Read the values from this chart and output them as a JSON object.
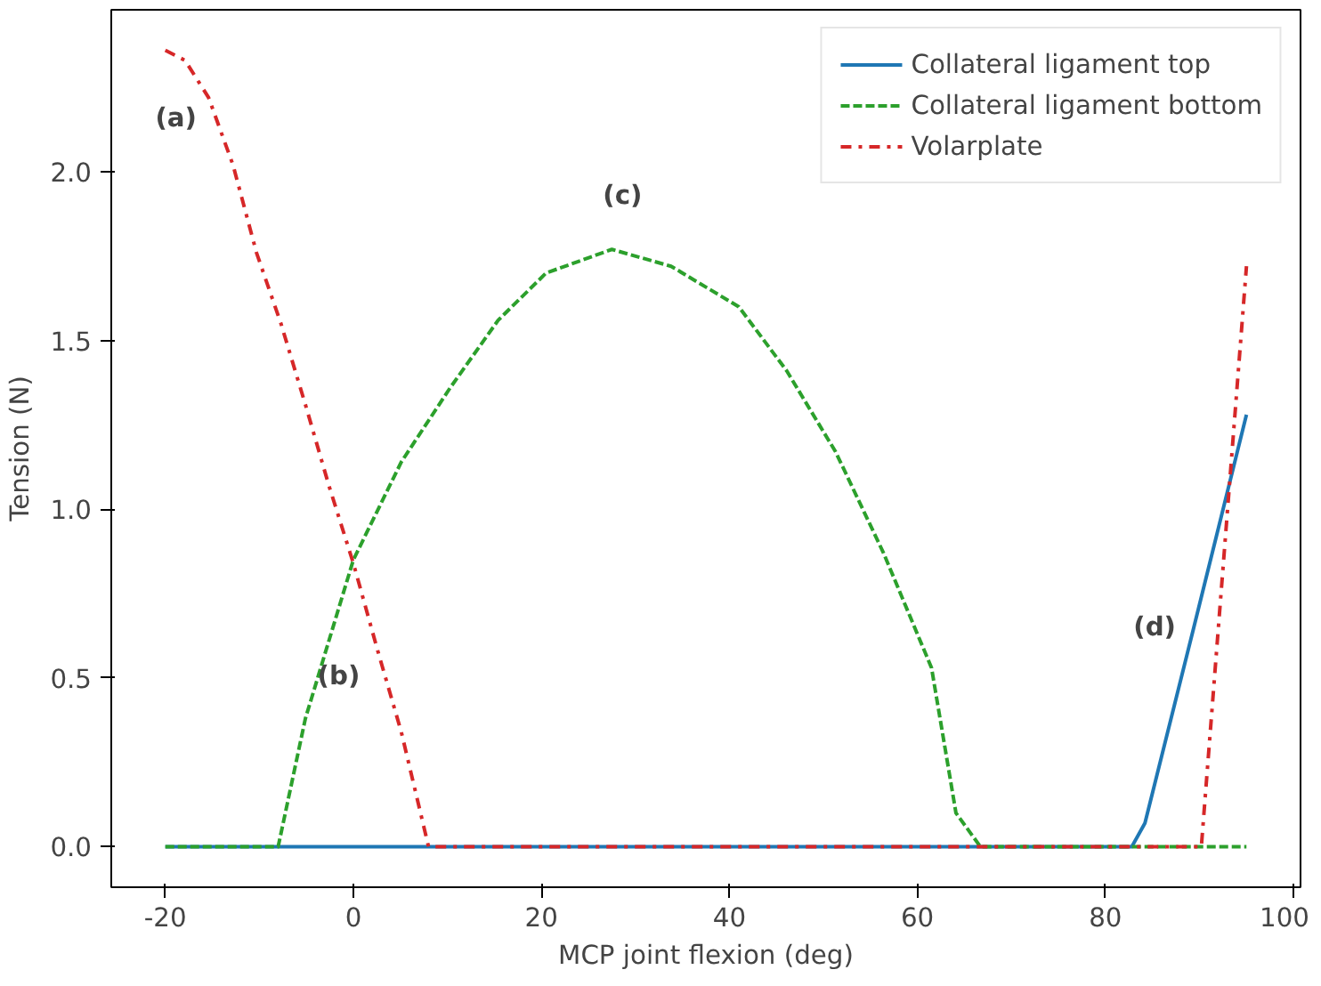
{
  "chart_data": {
    "type": "line",
    "xlabel": "MCP joint flexion (deg)",
    "ylabel": "Tension (N)",
    "xlim": [
      -25.75,
      100.75
    ],
    "ylim": [
      -0.12,
      2.48
    ],
    "xticks": [
      -20,
      0,
      20,
      40,
      60,
      80,
      100
    ],
    "yticks": [
      {
        "value": 0,
        "label": "0.0"
      },
      0.5,
      {
        "value": 1,
        "label": "1.0"
      },
      1.5,
      {
        "value": 2,
        "label": "2.0"
      }
    ],
    "grid": false,
    "legend": "top right",
    "series": [
      {
        "name": "Collateral ligament top",
        "color": "#1f77b4",
        "line_style": "solid",
        "x": [
          -20,
          82.8,
          84.2,
          89.4,
          95
        ],
        "values": [
          0,
          0,
          0.07,
          0.65,
          1.28
        ]
      },
      {
        "name": "Collateral ligament bottom",
        "color": "#2ca02c",
        "line_style": "dashed",
        "x": [
          -20,
          -8,
          -5.1,
          0,
          5.1,
          10.3,
          15.4,
          20.5,
          27.5,
          33.8,
          41,
          46.1,
          51.3,
          56.4,
          61.5,
          64.1,
          66.7,
          95
        ],
        "values": [
          0,
          0,
          0.38,
          0.85,
          1.14,
          1.36,
          1.56,
          1.7,
          1.77,
          1.72,
          1.6,
          1.41,
          1.17,
          0.87,
          0.53,
          0.1,
          0,
          0
        ]
      },
      {
        "name": "Volarplate",
        "color": "#d62728",
        "line_style": "dashdot",
        "x": [
          -20,
          -17.9,
          -15.4,
          -12.8,
          -10.3,
          -7.7,
          -5.1,
          -2.6,
          0,
          2.6,
          5.1,
          8,
          90.2,
          95
        ],
        "values": [
          2.36,
          2.33,
          2.22,
          2.02,
          1.76,
          1.55,
          1.31,
          1.07,
          0.84,
          0.58,
          0.34,
          0,
          0,
          1.72
        ]
      }
    ],
    "annotations": [
      {
        "text": "(a)",
        "x": -20,
        "y": 2.36
      },
      {
        "text": "(b)",
        "x": 2.6,
        "y": 0.58
      },
      {
        "text": "(c)",
        "x": 27.5,
        "y": 1.77
      },
      {
        "text": "(d)",
        "x": 89.4,
        "y": 0.65
      }
    ]
  }
}
